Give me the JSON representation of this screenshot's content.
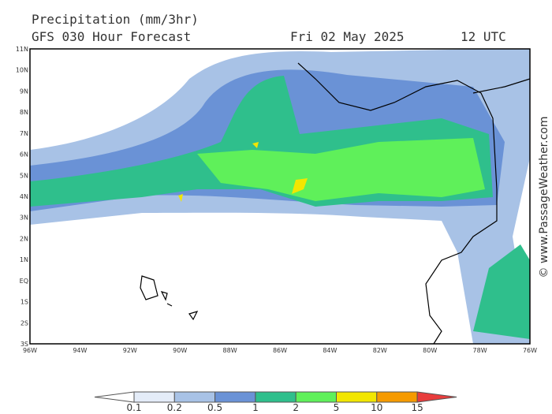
{
  "header": {
    "title": "Precipitation (mm/3hr)",
    "model": "GFS 030 Hour Forecast",
    "date": "Fri 02 May 2025",
    "time": "12 UTC"
  },
  "map": {
    "lon_labels": [
      "96W",
      "94W",
      "92W",
      "90W",
      "88W",
      "86W",
      "84W",
      "82W",
      "80W",
      "78W",
      "76W"
    ],
    "lat_labels": [
      "11N",
      "10N",
      "9N",
      "8N",
      "7N",
      "6N",
      "5N",
      "4N",
      "3N",
      "2N",
      "1N",
      "EQ",
      "1S",
      "2S",
      "3S"
    ]
  },
  "colorbar": {
    "ticks": [
      0.1,
      0.2,
      0.5,
      1,
      2,
      5,
      10,
      15
    ],
    "colors": [
      "#ffffff",
      "#e4ecf8",
      "#a8c2e6",
      "#6a92d6",
      "#2fbf8c",
      "#5ff05a",
      "#f2e600",
      "#f59a00",
      "#e83c3c"
    ]
  },
  "watermark": "© www.PassageWeather.com"
}
